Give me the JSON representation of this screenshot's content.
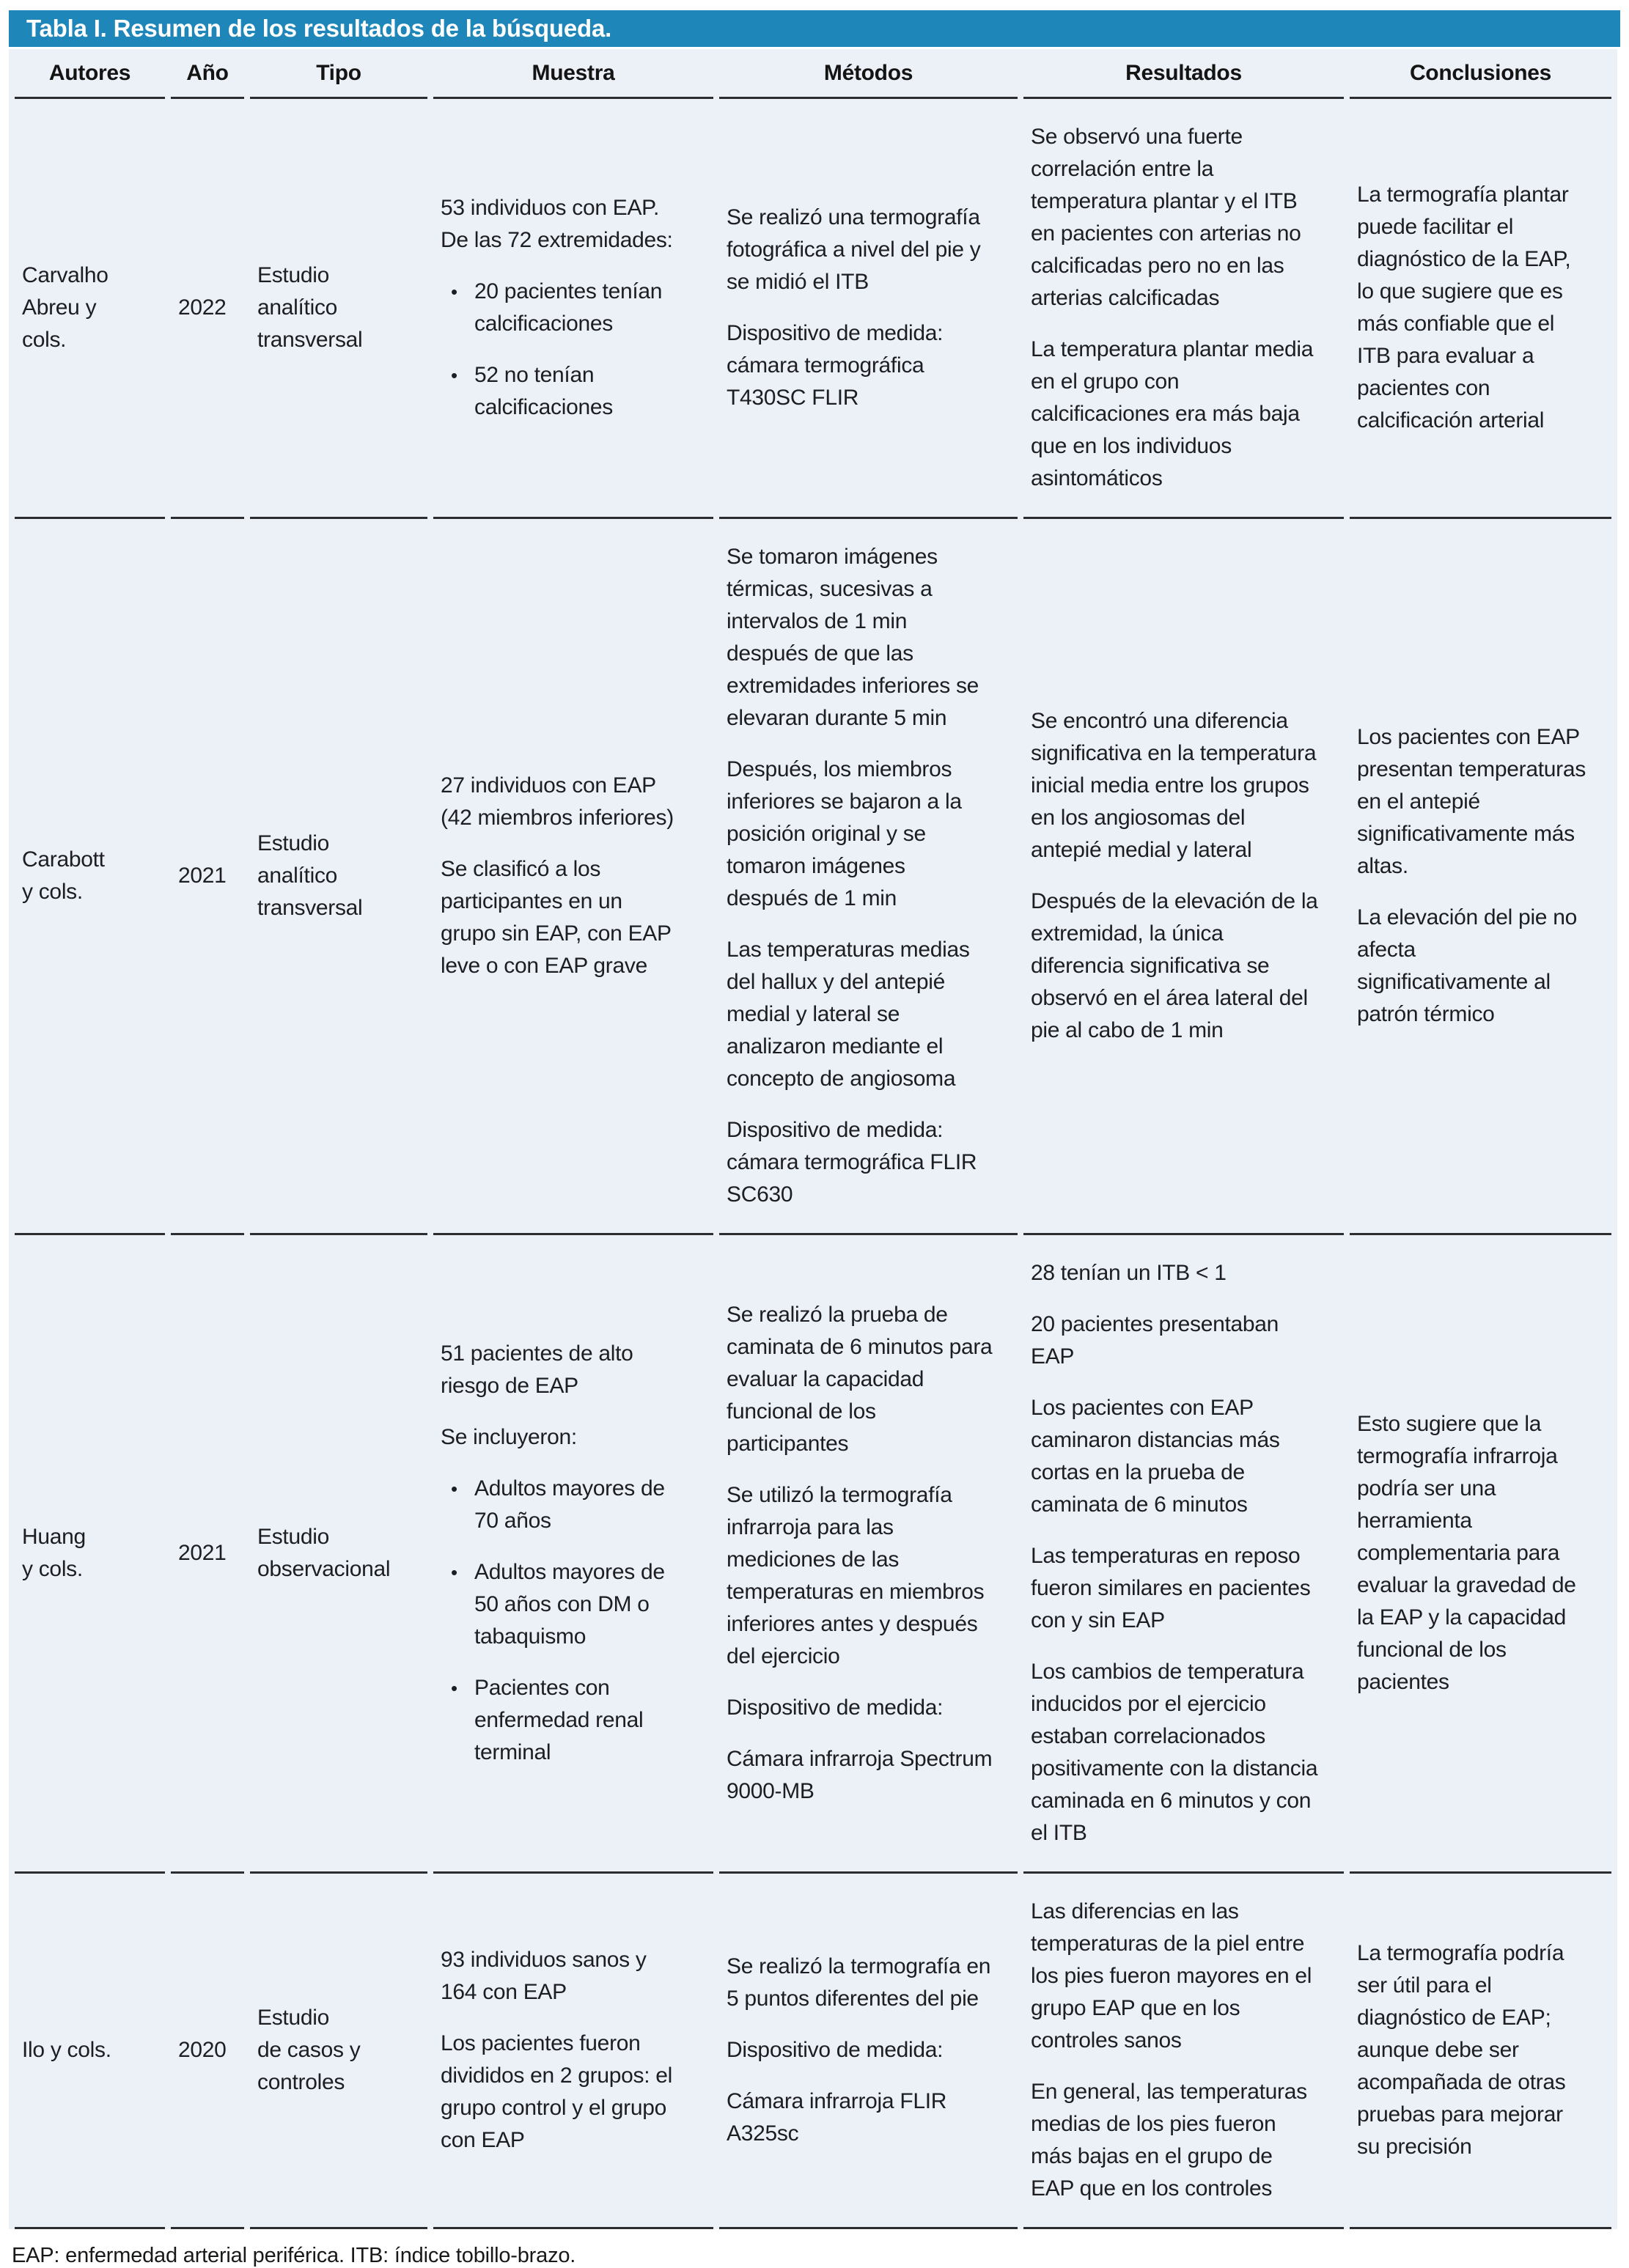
{
  "colors": {
    "title_bar_bg": "#1e86b9",
    "title_text": "#ffffff",
    "table_bg": "#ecf0f7",
    "rule_color": "#2b2d30"
  },
  "table": {
    "title": "Tabla I. Resumen de los resultados de la búsqueda.",
    "columns": [
      "Autores",
      "Año",
      "Tipo",
      "Muestra",
      "Métodos",
      "Resultados",
      "Conclusiones"
    ],
    "rows": [
      {
        "autores": "Carvalho\nAbreu y\ncols.",
        "ano": "2022",
        "tipo": "Estudio\nanalítico\ntransversal",
        "muestra": [
          {
            "t": "p",
            "text": "53 individuos con EAP. De las 72 extremidades:"
          },
          {
            "t": "b",
            "text": "20 pacientes tenían calcificaciones"
          },
          {
            "t": "b",
            "text": "52 no tenían calcificaciones"
          }
        ],
        "metodos": [
          {
            "t": "p",
            "text": "Se realizó una termografía fotográfica a nivel del pie y se midió el ITB"
          },
          {
            "t": "p",
            "text": "Dispositivo de medida: cámara termográfica T430SC FLIR"
          }
        ],
        "resultados": [
          {
            "t": "p",
            "text": "Se observó una fuerte correlación entre la temperatura plantar y el ITB en pacientes con arterias no calcificadas pero no en las arterias calcificadas"
          },
          {
            "t": "p",
            "text": "La temperatura plantar media en el grupo con calcificaciones era más baja que en los individuos asintomáticos"
          }
        ],
        "conclusiones": [
          {
            "t": "p",
            "text": "La termografía plantar puede facilitar el diagnóstico de la EAP, lo que sugiere que es más confiable que el ITB para evaluar a pacientes con calcificación arterial"
          }
        ]
      },
      {
        "autores": "Carabott\ny cols.",
        "ano": "2021",
        "tipo": "Estudio\nanalítico\ntransversal",
        "muestra": [
          {
            "t": "p",
            "text": "27 individuos con EAP (42 miembros inferiores)"
          },
          {
            "t": "p",
            "text": "Se clasificó a los participantes en un grupo sin EAP, con EAP leve o con EAP grave"
          }
        ],
        "metodos": [
          {
            "t": "p",
            "text": "Se tomaron imágenes térmicas, sucesivas a intervalos de 1 min después de que las extremidades inferiores se elevaran durante 5 min"
          },
          {
            "t": "p",
            "text": "Después, los miembros inferiores se bajaron a la posición original y se tomaron imágenes después de 1 min"
          },
          {
            "t": "p",
            "text": "Las temperaturas medias del hallux y del antepié medial y lateral se analizaron mediante el concepto de angiosoma"
          },
          {
            "t": "p",
            "text": "Dispositivo de medida: cámara termográfica FLIR SC630"
          }
        ],
        "resultados": [
          {
            "t": "p",
            "text": "Se encontró una diferencia significativa en la temperatura inicial media entre los grupos en los angiosomas del antepié medial y lateral"
          },
          {
            "t": "p",
            "text": "Después de la elevación de la extremidad, la única diferencia significativa se observó en el área lateral del pie al cabo de 1 min"
          }
        ],
        "conclusiones": [
          {
            "t": "p",
            "text": "Los pacientes con EAP presentan temperaturas en el antepié significativamente más altas."
          },
          {
            "t": "p",
            "text": "La elevación del pie no afecta significativamente al patrón térmico"
          }
        ]
      },
      {
        "autores": "Huang\ny cols.",
        "ano": "2021",
        "tipo": "Estudio\nobservacional",
        "muestra": [
          {
            "t": "p",
            "text": "51 pacientes de alto riesgo de EAP"
          },
          {
            "t": "p",
            "text": "Se incluyeron:"
          },
          {
            "t": "b",
            "text": "Adultos mayores de 70 años"
          },
          {
            "t": "b",
            "text": "Adultos mayores de 50 años con DM o tabaquismo"
          },
          {
            "t": "b",
            "text": "Pacientes con enfermedad renal terminal"
          }
        ],
        "metodos": [
          {
            "t": "p",
            "text": "Se realizó la prueba de caminata de 6 minutos para evaluar la capacidad funcional de los participantes"
          },
          {
            "t": "p",
            "text": "Se utilizó la termografía infrarroja para las mediciones de las temperaturas en miembros inferiores antes y después del ejercicio"
          },
          {
            "t": "p",
            "text": "Dispositivo de medida:"
          },
          {
            "t": "p",
            "text": "Cámara infrarroja Spectrum 9000-MB"
          }
        ],
        "resultados": [
          {
            "t": "p",
            "text": "28 tenían un ITB < 1"
          },
          {
            "t": "p",
            "text": "20 pacientes presentaban EAP"
          },
          {
            "t": "p",
            "text": "Los pacientes con EAP caminaron distancias más cortas en la prueba de caminata de 6 minutos"
          },
          {
            "t": "p",
            "text": "Las temperaturas en reposo fueron similares en pacientes con y sin EAP"
          },
          {
            "t": "p",
            "text": "Los cambios de temperatura inducidos por el ejercicio estaban correlacionados positivamente con la distancia caminada en 6 minutos y con el ITB"
          }
        ],
        "conclusiones": [
          {
            "t": "p",
            "text": "Esto sugiere que la termografía infrarroja podría ser una herramienta complementaria para evaluar la gravedad de la EAP y la capacidad funcional de los pacientes"
          }
        ]
      },
      {
        "autores": "Ilo y cols.",
        "ano": "2020",
        "tipo": "Estudio\nde casos y\ncontroles",
        "muestra": [
          {
            "t": "p",
            "text": "93 individuos sanos y 164 con EAP"
          },
          {
            "t": "p",
            "text": "Los pacientes fueron divididos en 2 grupos: el grupo control y el grupo con EAP"
          }
        ],
        "metodos": [
          {
            "t": "p",
            "text": "Se realizó la termografía en 5 puntos diferentes del pie"
          },
          {
            "t": "p",
            "text": "Dispositivo de medida:"
          },
          {
            "t": "p",
            "text": "Cámara infrarroja FLIR A325sc"
          }
        ],
        "resultados": [
          {
            "t": "p",
            "text": "Las diferencias en las temperaturas de la piel entre los pies fueron mayores en el grupo EAP que en los controles sanos"
          },
          {
            "t": "p",
            "text": "En general, las temperaturas medias de los pies fueron más bajas en el grupo de EAP que en los controles"
          }
        ],
        "conclusiones": [
          {
            "t": "p",
            "text": "La termografía podría ser útil para el diagnóstico de EAP; aunque debe ser acompañada de otras pruebas para mejorar su precisión"
          }
        ]
      }
    ],
    "footnote": "EAP: enfermedad arterial periférica. ITB: índice tobillo-brazo."
  }
}
